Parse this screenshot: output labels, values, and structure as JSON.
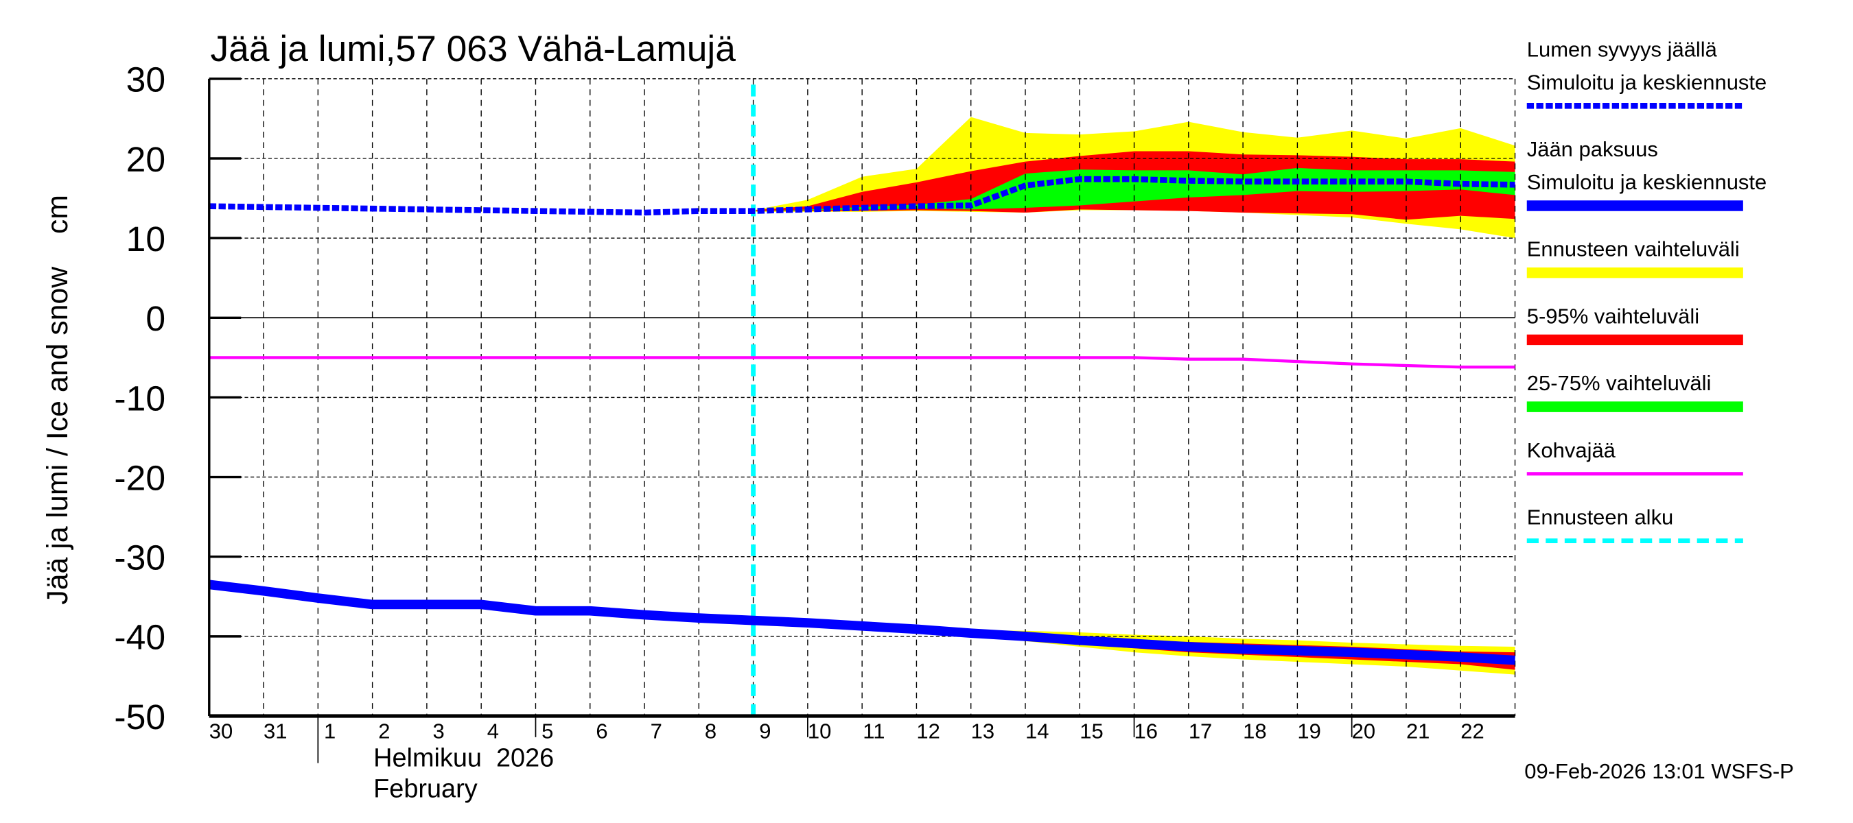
{
  "chart_data": {
    "type": "area",
    "title": "Jää ja lumi,57 063 Vähä-Lamujä",
    "ylabel": "Jää ja lumi / Ice and snow    cm",
    "ylim": [
      -50,
      30
    ],
    "yticks": [
      30,
      20,
      10,
      0,
      -10,
      -20,
      -30,
      -40,
      -50
    ],
    "grid": true,
    "legend_position": "right",
    "x_month_label_fi": "Helmikuu  2026",
    "x_month_label_en": "February",
    "xtick_labels": [
      "30",
      "31",
      "1",
      "2",
      "3",
      "4",
      "5",
      "6",
      "7",
      "8",
      "9",
      "10",
      "11",
      "12",
      "13",
      "14",
      "15",
      "16",
      "17",
      "18",
      "19",
      "20",
      "21",
      "22"
    ],
    "x": [
      "2026-01-30",
      "2026-01-31",
      "2026-02-01",
      "2026-02-02",
      "2026-02-03",
      "2026-02-04",
      "2026-02-05",
      "2026-02-06",
      "2026-02-07",
      "2026-02-08",
      "2026-02-09",
      "2026-02-10",
      "2026-02-11",
      "2026-02-12",
      "2026-02-13",
      "2026-02-14",
      "2026-02-15",
      "2026-02-16",
      "2026-02-17",
      "2026-02-18",
      "2026-02-19",
      "2026-02-20",
      "2026-02-21",
      "2026-02-22",
      "2026-02-23"
    ],
    "forecast_start": "2026-02-09",
    "series": [
      {
        "name": "Lumen syvyys jäällä Simuloitu ja keskiennuste",
        "color": "#0000ff",
        "style": "dotted",
        "values": [
          14.0,
          13.9,
          13.8,
          13.7,
          13.6,
          13.5,
          13.4,
          13.3,
          13.2,
          13.4,
          13.4,
          13.6,
          13.8,
          14.0,
          14.1,
          16.6,
          17.4,
          17.4,
          17.2,
          17.1,
          17.1,
          17.1,
          17.1,
          16.8,
          16.7
        ]
      },
      {
        "name": "Jään paksuus Simuloitu ja keskiennuste",
        "color": "#0000ff",
        "style": "solid",
        "values": [
          -33.5,
          -34.3,
          -35.2,
          -36.0,
          -36.0,
          -36.0,
          -36.8,
          -36.8,
          -37.3,
          -37.7,
          -38.0,
          -38.3,
          -38.7,
          -39.1,
          -39.6,
          -40.0,
          -40.5,
          -40.9,
          -41.3,
          -41.6,
          -41.8,
          -42.0,
          -42.3,
          -42.6,
          -43.0
        ]
      },
      {
        "name": "Kohvajää",
        "color": "#ff00ff",
        "style": "solid",
        "values": [
          -5,
          -5,
          -5,
          -5,
          -5,
          -5,
          -5,
          -5,
          -5,
          -5,
          -5,
          -5,
          -5,
          -5,
          -5,
          -5,
          -5,
          -5,
          -5.2,
          -5.2,
          -5.5,
          -5.8,
          -6.0,
          -6.2,
          -6.2
        ]
      }
    ],
    "bands": [
      {
        "name": "Ennusteen vaihteluväli",
        "color": "#ffff00",
        "group": "snow",
        "start": "2026-02-09",
        "upper": [
          13.5,
          14.8,
          17.7,
          18.7,
          25.2,
          23.2,
          23.0,
          23.4,
          24.6,
          23.3,
          22.6,
          23.5,
          22.5,
          23.8,
          21.6
        ],
        "lower": [
          13.3,
          13.3,
          13.3,
          13.4,
          13.3,
          13.2,
          13.5,
          13.5,
          13.4,
          13.2,
          12.9,
          12.6,
          11.8,
          11.1,
          10.0
        ]
      },
      {
        "name": "5-95% vaihteluväli",
        "color": "#ff0000",
        "group": "snow",
        "start": "2026-02-09",
        "upper": [
          13.5,
          14.0,
          15.8,
          17.0,
          18.4,
          19.6,
          20.3,
          20.9,
          20.9,
          20.5,
          20.4,
          20.2,
          19.9,
          19.9,
          19.6
        ],
        "lower": [
          13.4,
          13.4,
          13.4,
          13.5,
          13.4,
          13.2,
          13.6,
          13.5,
          13.4,
          13.2,
          13.1,
          13.0,
          12.3,
          12.8,
          12.4
        ]
      },
      {
        "name": "25-75% vaihteluväli",
        "color": "#00ff00",
        "group": "snow",
        "start": "2026-02-09",
        "upper": [
          13.4,
          13.6,
          13.9,
          14.2,
          14.9,
          18.1,
          18.6,
          18.5,
          18.5,
          18.0,
          18.8,
          18.5,
          18.5,
          18.5,
          18.3
        ],
        "lower": [
          13.4,
          13.5,
          13.6,
          13.7,
          13.6,
          13.8,
          14.1,
          14.6,
          15.1,
          15.4,
          15.9,
          15.8,
          15.9,
          16.1,
          15.4
        ]
      },
      {
        "name": "Ennusteen vaihteluväli",
        "color": "#ffff00",
        "group": "ice",
        "start": "2026-02-13",
        "upper": [
          -39.2,
          -39.3,
          -39.5,
          -39.8,
          -40.0,
          -40.3,
          -40.5,
          -40.8,
          -41.0,
          -41.2,
          -41.3
        ],
        "lower": [
          -39.9,
          -40.6,
          -41.3,
          -42.0,
          -42.5,
          -42.9,
          -43.2,
          -43.5,
          -43.8,
          -44.3,
          -44.8
        ]
      },
      {
        "name": "5-95% vaihteluväli",
        "color": "#ff0000",
        "group": "ice",
        "start": "2026-02-13",
        "upper": [
          -39.5,
          -39.8,
          -40.2,
          -40.5,
          -40.7,
          -40.9,
          -41.1,
          -41.3,
          -41.6,
          -41.9,
          -42.0
        ],
        "lower": [
          -39.8,
          -40.4,
          -41.0,
          -41.5,
          -42.0,
          -42.3,
          -42.6,
          -42.9,
          -43.2,
          -43.5,
          -44.2
        ]
      }
    ]
  },
  "legend": [
    {
      "label1": "Lumen syvyys jäällä",
      "label2": "Simuloitu ja keskiennuste",
      "color": "#0000ff",
      "style": "dotted"
    },
    {
      "label1": "Jään paksuus",
      "label2": "Simuloitu ja keskiennuste",
      "color": "#0000ff",
      "style": "solid"
    },
    {
      "label1": "Ennusteen vaihteluväli",
      "color": "#ffff00",
      "style": "solid"
    },
    {
      "label1": "5-95% vaihteluväli",
      "color": "#ff0000",
      "style": "solid"
    },
    {
      "label1": "25-75% vaihteluväli",
      "color": "#00ff00",
      "style": "solid"
    },
    {
      "label1": "Kohvajää",
      "color": "#ff00ff",
      "style": "thin"
    },
    {
      "label1": "Ennusteen alku",
      "color": "#00ffff",
      "style": "dashed"
    }
  ],
  "footer": "09-Feb-2026 13:01 WSFS-P"
}
